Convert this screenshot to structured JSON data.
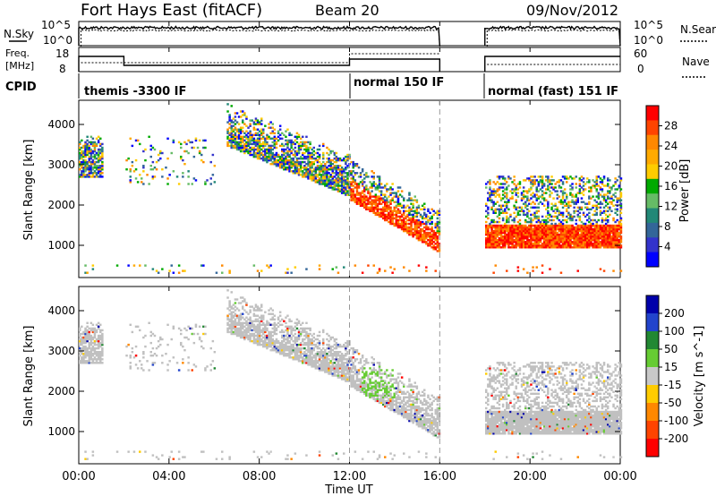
{
  "header": {
    "title": "Fort Hays East (fitACF)",
    "beam": "Beam 20",
    "date": "09/Nov/2012"
  },
  "top_panels": {
    "nsky_label": "N.Sky",
    "nsky_ticks": [
      "10^5",
      "10^0"
    ],
    "nsearch_label": "N.Search",
    "nsearch_ticks": [
      "10^5",
      "10^0"
    ],
    "freq_label": [
      "Freq.",
      "[MHz]"
    ],
    "freq_ticks": [
      "18",
      "8"
    ],
    "nave_label": "Nave",
    "nave_ticks": [
      "60",
      "0"
    ],
    "cpid_label": "CPID",
    "cpid_segments": [
      "themis -3300 IF",
      "normal 150 IF",
      "normal (fast) 151 IF"
    ]
  },
  "chart_data": [
    {
      "type": "heatmap",
      "name": "power",
      "ylabel": "Slant Range [km]",
      "yticks": [
        1000,
        2000,
        3000,
        4000
      ],
      "ylim": [
        200,
        4600
      ],
      "xlim": [
        0,
        24
      ],
      "colorbar_label": "Power [dB]",
      "colorbar_ticks": [
        "28",
        "24",
        "20",
        "16",
        "12",
        "8",
        "4"
      ],
      "colorbar_colors": [
        "#ff0000",
        "#ff4400",
        "#ff8800",
        "#ffaa00",
        "#ffcc00",
        "#00aa00",
        "#66bb66",
        "#228877",
        "#336699",
        "#3333cc",
        "#0000ff"
      ],
      "data_gaps_hours": [
        [
          16.0,
          18.0
        ]
      ]
    },
    {
      "type": "heatmap",
      "name": "velocity",
      "ylabel": "Slant Range [km]",
      "yticks": [
        1000,
        2000,
        3000,
        4000
      ],
      "ylim": [
        200,
        4600
      ],
      "xlim": [
        0,
        24
      ],
      "colorbar_label": "Velocity [m s^-1]",
      "colorbar_ticks": [
        "200",
        "100",
        "50",
        "15",
        "-15",
        "-50",
        "-100",
        "-200"
      ],
      "colorbar_colors": [
        "#0000aa",
        "#2244cc",
        "#228833",
        "#66cc33",
        "#c8c8c8",
        "#ffcc00",
        "#ff8800",
        "#ff4400",
        "#ff0000"
      ],
      "ground_scatter_color": "#c0c0c0"
    }
  ],
  "xaxis": {
    "ticks": [
      "00:00",
      "04:00",
      "08:00",
      "12:00",
      "16:00",
      "20:00",
      "00:00"
    ],
    "label": "Time UT"
  }
}
